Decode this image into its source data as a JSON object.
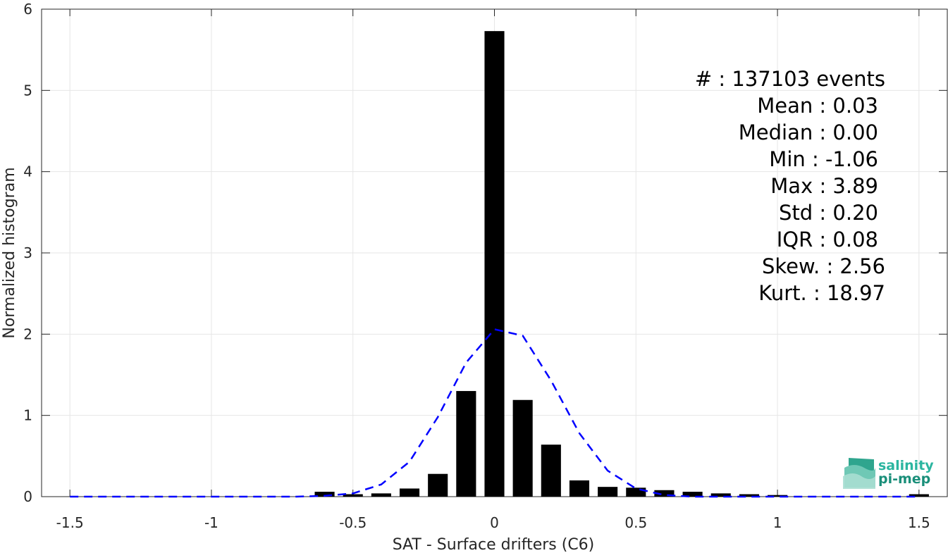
{
  "chart_data": {
    "type": "bar",
    "xlabel": "SAT - Surface drifters (C6)",
    "ylabel": "Normalized histogram",
    "xlim": [
      -1.6,
      1.6
    ],
    "ylim": [
      0,
      6
    ],
    "grid": true,
    "x_ticks": [
      -1.5,
      -1,
      -0.5,
      0,
      0.5,
      1,
      1.5
    ],
    "x_tick_labels": [
      "-1.5",
      "-1",
      "-0.5",
      "0",
      "0.5",
      "1",
      "1.5"
    ],
    "y_ticks": [
      0,
      1,
      2,
      3,
      4,
      5,
      6
    ],
    "y_tick_labels": [
      "0",
      "1",
      "2",
      "3",
      "4",
      "5",
      "6"
    ],
    "bar_width": 0.07,
    "histogram": {
      "color": "#000000",
      "x": [
        -0.6,
        -0.5,
        -0.4,
        -0.3,
        -0.2,
        -0.1,
        0.0,
        0.1,
        0.2,
        0.3,
        0.4,
        0.5,
        0.6,
        0.7,
        0.8,
        0.9,
        1.0,
        1.5
      ],
      "values": [
        0.06,
        0.03,
        0.04,
        0.1,
        0.28,
        1.3,
        5.73,
        1.19,
        0.64,
        0.2,
        0.12,
        0.11,
        0.08,
        0.06,
        0.04,
        0.03,
        0.02,
        0.03
      ]
    },
    "gaussian_fit": {
      "color": "#0000ff",
      "style": "dashed",
      "x": [
        -1.5,
        -0.7,
        -0.6,
        -0.5,
        -0.4,
        -0.3,
        -0.2,
        -0.1,
        0.0,
        0.1,
        0.2,
        0.3,
        0.4,
        0.5,
        0.6,
        0.7,
        1.5
      ],
      "values": [
        0.0,
        0.0,
        0.01,
        0.04,
        0.15,
        0.43,
        0.98,
        1.65,
        2.06,
        1.98,
        1.43,
        0.78,
        0.32,
        0.1,
        0.02,
        0.0,
        0.0
      ]
    },
    "stats": [
      "#  : 137103 events",
      "Mean : 0.03",
      "Median : 0.00",
      "Min : -1.06",
      "Max : 3.89",
      "Std : 0.20",
      "IQR : 0.08",
      "Skew. : 2.56",
      "Kurt. : 18.97"
    ]
  },
  "logo": {
    "line1": "salinity",
    "line2": "pi-mep",
    "color1": "#2bb5a0",
    "color2": "#1a8f7a"
  }
}
